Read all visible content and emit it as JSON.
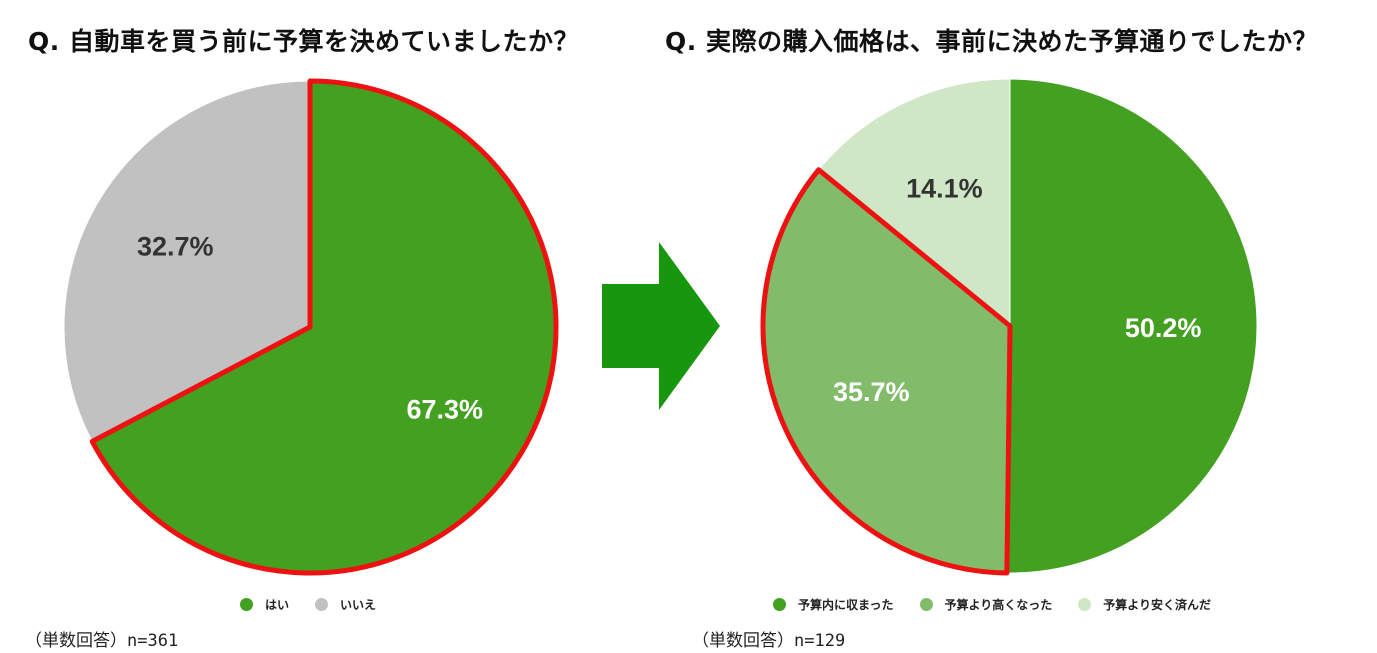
{
  "colors": {
    "green_dark": "#43a020",
    "green_mid": "#82bc6b",
    "green_light": "#cfe7c7",
    "gray": "#c1c1c1",
    "highlight": "#ee1111",
    "arrow": "#17970d"
  },
  "arrow_icon": "arrow-right-icon",
  "chart_data": [
    {
      "type": "pie",
      "title": "Q. 自動車を買う前に予算を決めていましたか？",
      "categories": [
        "はい",
        "いいえ"
      ],
      "values": [
        67.3,
        32.7
      ],
      "labels": [
        "67.3%",
        "32.7%"
      ],
      "colors": [
        "#43a020",
        "#c1c1c1"
      ],
      "label_colors": [
        "#ffffff",
        "#333333"
      ],
      "highlighted": [
        "はい"
      ],
      "legend": "bottom",
      "note": "（単数回答）n=361"
    },
    {
      "type": "pie",
      "title": "Q. 実際の購入価格は、事前に決めた予算通りでしたか？",
      "categories": [
        "予算内に収まった",
        "予算より高くなった",
        "予算より安く済んだ"
      ],
      "values": [
        50.2,
        35.7,
        14.1
      ],
      "labels": [
        "50.2%",
        "35.7%",
        "14.1%"
      ],
      "colors": [
        "#43a020",
        "#82bc6b",
        "#cfe7c7"
      ],
      "label_colors": [
        "#ffffff",
        "#ffffff",
        "#333333"
      ],
      "highlighted": [
        "予算より高くなった"
      ],
      "legend": "bottom",
      "note": "（単数回答）n=129"
    }
  ]
}
